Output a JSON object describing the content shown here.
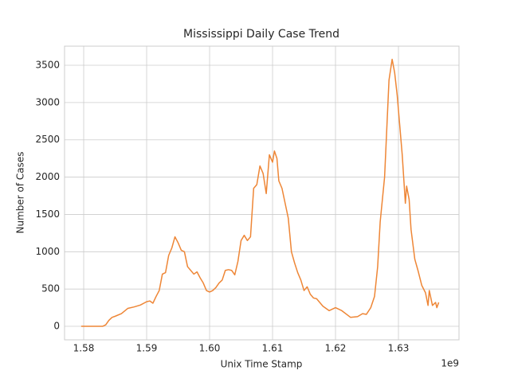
{
  "chart_data": {
    "type": "line",
    "title": "Mississippi Daily Case Trend",
    "x_label": "Unix Time Stamp",
    "y_label": "Number of Cases",
    "x_offset_label": "1e9",
    "color": "#ee8636",
    "grid": true,
    "xlim": [
      1.57696,
      1.63962
    ],
    "ylim": [
      -181,
      3756
    ],
    "xticks": [
      1.58,
      1.59,
      {
        "value": 1.6,
        "label": "1.60"
      },
      1.61,
      1.62,
      1.63
    ],
    "yticks": [
      0,
      500,
      1000,
      1500,
      2000,
      2500,
      3000,
      3500
    ],
    "x": [
      1.5796,
      1.583,
      1.5835,
      1.584,
      1.5845,
      1.585,
      1.586,
      1.587,
      1.588,
      1.589,
      1.59,
      1.5905,
      1.591,
      1.5915,
      1.592,
      1.5925,
      1.593,
      1.5935,
      1.594,
      1.5945,
      1.595,
      1.5955,
      1.596,
      1.5965,
      1.597,
      1.5975,
      1.598,
      1.5985,
      1.599,
      1.5995,
      1.6,
      1.6005,
      1.601,
      1.6015,
      1.602,
      1.6025,
      1.603,
      1.6035,
      1.604,
      1.6045,
      1.605,
      1.6055,
      1.606,
      1.6065,
      1.607,
      1.6075,
      1.608,
      1.6085,
      1.609,
      1.6095,
      1.61,
      1.6103,
      1.6107,
      1.611,
      1.6115,
      1.612,
      1.6125,
      1.613,
      1.6135,
      1.614,
      1.6145,
      1.615,
      1.6155,
      1.616,
      1.6165,
      1.617,
      1.618,
      1.619,
      1.62,
      1.621,
      1.6224,
      1.6235,
      1.6243,
      1.6249,
      1.6256,
      1.6262,
      1.6267,
      1.6271,
      1.6278,
      1.6285,
      1.629,
      1.6294,
      1.6298,
      1.6301,
      1.6306,
      1.6311,
      1.6313,
      1.6317,
      1.632,
      1.6326,
      1.6331,
      1.6337,
      1.6343,
      1.6347,
      1.6349,
      1.6354,
      1.6359,
      1.6361,
      1.6364
    ],
    "values": [
      0,
      0,
      20,
      80,
      120,
      135,
      170,
      240,
      260,
      285,
      330,
      340,
      310,
      400,
      480,
      700,
      720,
      950,
      1050,
      1200,
      1120,
      1020,
      1000,
      800,
      750,
      700,
      730,
      650,
      580,
      480,
      460,
      480,
      520,
      580,
      620,
      750,
      760,
      750,
      690,
      870,
      1150,
      1220,
      1150,
      1200,
      1850,
      1900,
      2150,
      2050,
      1780,
      2300,
      2200,
      2350,
      2250,
      1950,
      1850,
      1650,
      1450,
      1000,
      850,
      720,
      620,
      480,
      530,
      430,
      380,
      370,
      270,
      210,
      250,
      210,
      120,
      130,
      170,
      160,
      250,
      400,
      800,
      1400,
      2000,
      3300,
      3580,
      3400,
      3100,
      2800,
      2300,
      1650,
      1880,
      1700,
      1300,
      900,
      750,
      550,
      450,
      280,
      480,
      280,
      320,
      250,
      320
    ]
  }
}
